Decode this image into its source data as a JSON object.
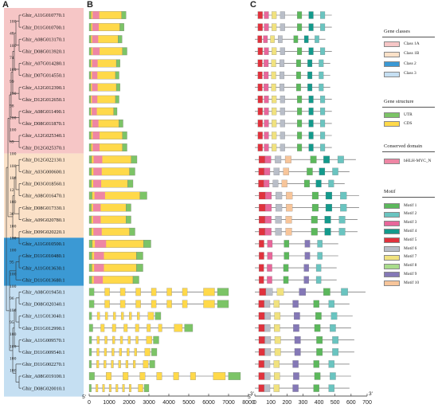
{
  "panels": {
    "a": "A",
    "b": "B",
    "c": "C"
  },
  "genes": [
    {
      "name": "Ghir_A11G010770.1",
      "cls": "1A"
    },
    {
      "name": "Ghir_D11G010700.1",
      "cls": "1A"
    },
    {
      "name": "Ghir_A08G013170.1",
      "cls": "1A"
    },
    {
      "name": "Ghir_D08G013920.1",
      "cls": "1A"
    },
    {
      "name": "Ghir_A07G014280.1",
      "cls": "1A"
    },
    {
      "name": "Ghir_D07G014550.1",
      "cls": "1A"
    },
    {
      "name": "Ghir_A12G012390.1",
      "cls": "1A"
    },
    {
      "name": "Ghir_D12G012650.1",
      "cls": "1A"
    },
    {
      "name": "Ghir_A08G011490.1",
      "cls": "1A"
    },
    {
      "name": "Ghir_D08G011870.1",
      "cls": "1A"
    },
    {
      "name": "Ghir_A12G025340.1",
      "cls": "1A"
    },
    {
      "name": "Ghir_D12G025370.1",
      "cls": "1A"
    },
    {
      "name": "Ghir_D12G022130.1",
      "cls": "1B"
    },
    {
      "name": "Ghir_A03G000600.1",
      "cls": "1B"
    },
    {
      "name": "Ghir_D03G018560.1",
      "cls": "1B"
    },
    {
      "name": "Ghir_A08G016470.1",
      "cls": "1B"
    },
    {
      "name": "Ghir_D08G017330.1",
      "cls": "1B"
    },
    {
      "name": "Ghir_A09G020780.1",
      "cls": "1B"
    },
    {
      "name": "Ghir_D09G020220.1",
      "cls": "1B"
    },
    {
      "name": "Ghir_A11G010500.1",
      "cls": "2"
    },
    {
      "name": "Ghir_D11G010480.1",
      "cls": "2"
    },
    {
      "name": "Ghir_A11G013630.1",
      "cls": "2"
    },
    {
      "name": "Ghir_D11G013680.1",
      "cls": "2"
    },
    {
      "name": "Ghir_A08G019450.1",
      "cls": "3"
    },
    {
      "name": "Ghir_D08G020340.1",
      "cls": "3"
    },
    {
      "name": "Ghir_A11G013040.1",
      "cls": "3"
    },
    {
      "name": "Ghir_D11G012990.1",
      "cls": "3"
    },
    {
      "name": "Ghir_A11G009570.1",
      "cls": "3"
    },
    {
      "name": "Ghir_D11G009540.1",
      "cls": "3"
    },
    {
      "name": "Ghir_D11G002270.1",
      "cls": "3"
    },
    {
      "name": "Ghir_A08G019100.1",
      "cls": "3"
    },
    {
      "name": "Ghir_D08G020010.1",
      "cls": "3"
    }
  ],
  "bootstrap": [
    "100",
    "48",
    "100",
    "74",
    "100",
    "99",
    "100",
    "98",
    "100",
    "100",
    "69",
    "100",
    "100",
    "100",
    "12",
    "100",
    "36",
    "100",
    "100",
    "100",
    "95",
    "100",
    "100",
    "96",
    "100",
    "95",
    "100",
    "100",
    "100",
    "100"
  ],
  "gene_lengths_bp": [
    1850,
    1750,
    1650,
    1900,
    1550,
    1500,
    1550,
    1500,
    1400,
    1700,
    1900,
    1900,
    2400,
    2300,
    2200,
    2900,
    2100,
    2100,
    2300,
    3100,
    2700,
    2700,
    2500,
    7000,
    7000,
    3600,
    5200,
    3500,
    3400,
    3300,
    7600,
    3000
  ],
  "axis_b": {
    "start_label": "5'",
    "end_label": "3'",
    "ticks": [
      "0",
      "1000",
      "2000",
      "3000",
      "4000",
      "5000",
      "6000",
      "7000",
      "8000"
    ],
    "max": 8000
  },
  "axis_c": {
    "start_label": "5'",
    "end_label": "3'",
    "ticks": [
      "0",
      "100",
      "200",
      "300",
      "400",
      "500",
      "600",
      "700"
    ],
    "max": 700
  },
  "protein_lengths_aa": [
    480,
    480,
    440,
    480,
    470,
    470,
    470,
    480,
    480,
    480,
    480,
    480,
    630,
    590,
    560,
    650,
    650,
    640,
    640,
    520,
    520,
    510,
    510,
    690,
    590,
    610,
    600,
    620,
    620,
    590,
    600,
    590
  ],
  "legend": {
    "classes_title": "Gene classes",
    "classes": [
      {
        "label": "Class 1A",
        "color": "#f6c6c6"
      },
      {
        "label": "Class 1B",
        "color": "#fbe1c8"
      },
      {
        "label": "Class 2",
        "color": "#3b99d4"
      },
      {
        "label": "Class 3",
        "color": "#c5dff2"
      }
    ],
    "structure_title": "Gene structure",
    "structure": [
      {
        "label": "UTR",
        "color": "#7cc467"
      },
      {
        "label": "CDS",
        "color": "#ffd94a"
      }
    ],
    "domain_title": "Conserved domain",
    "domain": [
      {
        "label": "bHLH-MYC_N",
        "color": "#ee86a4"
      }
    ],
    "motif_title": "Motif",
    "motifs": [
      {
        "label": "Motif 1",
        "color": "#5cb85c"
      },
      {
        "label": "Motif 2",
        "color": "#6ac4c0"
      },
      {
        "label": "Motif 3",
        "color": "#e8669a"
      },
      {
        "label": "Motif 4",
        "color": "#149a8c"
      },
      {
        "label": "Motif 5",
        "color": "#e0323d"
      },
      {
        "label": "Motif 6",
        "color": "#b9bec8"
      },
      {
        "label": "Motif 7",
        "color": "#f1e27f"
      },
      {
        "label": "Motif 8",
        "color": "#a9dc8c"
      },
      {
        "label": "Motif 9",
        "color": "#8478b6"
      },
      {
        "label": "Motif 10",
        "color": "#f7c59a"
      }
    ]
  }
}
